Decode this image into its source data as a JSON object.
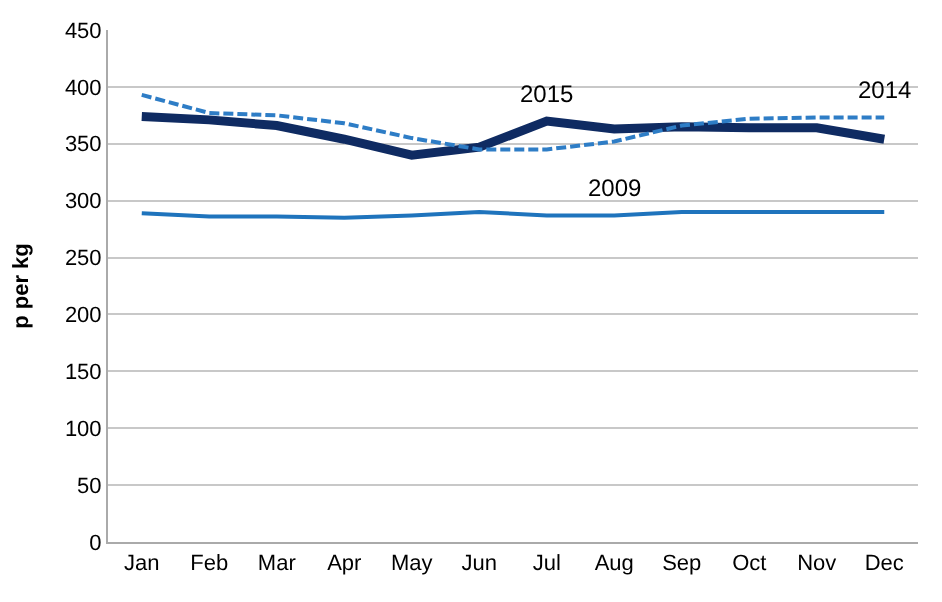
{
  "chart_data": {
    "type": "line",
    "ylabel": "p per kg",
    "categories": [
      "Jan",
      "Feb",
      "Mar",
      "Apr",
      "May",
      "Jun",
      "Jul",
      "Aug",
      "Sep",
      "Oct",
      "Nov",
      "Dec"
    ],
    "series": [
      {
        "color": "#0f2b62",
        "values": [
          374,
          371,
          366,
          354,
          340,
          347,
          370,
          363,
          365,
          364,
          364,
          354
        ],
        "line_style": "solid"
      },
      {
        "color": "#2e7dc6",
        "values": [
          393,
          377,
          375,
          368,
          355,
          345,
          345,
          352,
          366,
          372,
          373,
          373
        ],
        "line_style": "dashed"
      },
      {
        "color": "#1f74bd",
        "values": [
          289,
          286,
          286,
          285,
          287,
          290,
          287,
          287,
          290,
          290,
          290,
          290
        ],
        "line_style": "solid"
      }
    ],
    "annotations": [
      {
        "text": "2015",
        "x": "Jul",
        "y": 370
      },
      {
        "text": "2014",
        "x": "Dec",
        "y": 373
      },
      {
        "text": "2009",
        "x": "Aug",
        "y": 287
      }
    ],
    "ylim": [
      0,
      450
    ],
    "yticks": [
      0,
      50,
      100,
      150,
      200,
      250,
      300,
      350,
      400,
      450
    ],
    "grid": "y",
    "marker": "none"
  }
}
